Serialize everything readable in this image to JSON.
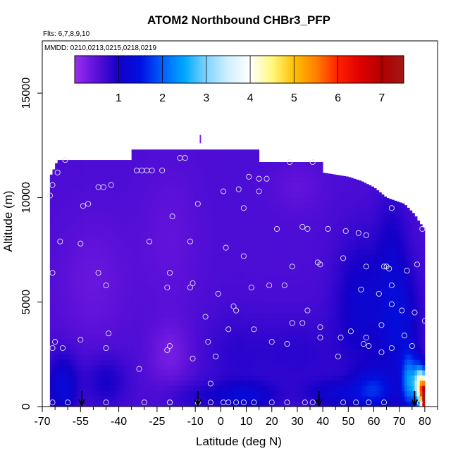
{
  "chart_data": {
    "type": "heatmap",
    "title": "ATOM2 Northbound CHBr3_PFP",
    "subtitle_flights": "Flts: 6,7,8,9,10",
    "subtitle_dates": "MMDD: 0210,0213,0215,0218,0219",
    "xlabel": "Latitude (deg N)",
    "ylabel": "Altitude (m)",
    "xlim": [
      -70,
      85
    ],
    "ylim": [
      0,
      17500
    ],
    "x_ticks": [
      -70,
      -55,
      -40,
      -25,
      -10,
      0,
      10,
      20,
      30,
      40,
      50,
      60,
      70,
      80
    ],
    "x_tick_labels": [
      "-70",
      "-55",
      "-40",
      "-25",
      "-10",
      "0",
      "10",
      "20",
      "30",
      "40",
      "50",
      "60",
      "70",
      "80"
    ],
    "x_minor_ticks": [
      -65,
      -60,
      -50,
      -45,
      -35,
      -30,
      -20,
      -15,
      -5,
      5,
      15,
      25,
      35,
      45,
      55,
      65,
      75,
      85
    ],
    "y_ticks": [
      0,
      5000,
      10000,
      15000
    ],
    "y_tick_labels": [
      "0",
      "5000",
      "10000",
      "15000"
    ],
    "colorbar": {
      "range": [
        0,
        7.5
      ],
      "ticks": [
        1,
        2,
        3,
        4,
        5,
        6,
        7
      ],
      "tick_labels": [
        "1",
        "2",
        "3",
        "4",
        "5",
        "6",
        "7"
      ],
      "stops": [
        {
          "v": 0.0,
          "color": "#9a2ff0"
        },
        {
          "v": 0.5,
          "color": "#5a10d8"
        },
        {
          "v": 1.0,
          "color": "#1400c8"
        },
        {
          "v": 1.5,
          "color": "#0010e0"
        },
        {
          "v": 2.0,
          "color": "#0060ff"
        },
        {
          "v": 2.5,
          "color": "#00a8ff"
        },
        {
          "v": 3.0,
          "color": "#80d4ff"
        },
        {
          "v": 3.5,
          "color": "#d0f0ff"
        },
        {
          "v": 4.0,
          "color": "#ffffff"
        },
        {
          "v": 4.5,
          "color": "#fff880"
        },
        {
          "v": 5.0,
          "color": "#ffc000"
        },
        {
          "v": 5.5,
          "color": "#ff8000"
        },
        {
          "v": 6.0,
          "color": "#ff2000"
        },
        {
          "v": 6.5,
          "color": "#e00000"
        },
        {
          "v": 7.0,
          "color": "#b00000"
        },
        {
          "v": 7.5,
          "color": "#a01818"
        }
      ]
    },
    "envelope": [
      [
        -67,
        11000
      ],
      [
        -66,
        11200
      ],
      [
        -64,
        11800
      ],
      [
        -45,
        11800
      ],
      [
        -35,
        11800
      ],
      [
        -35,
        12300
      ],
      [
        15,
        12300
      ],
      [
        15,
        11700
      ],
      [
        30,
        11700
      ],
      [
        40,
        11700
      ],
      [
        40,
        11200
      ],
      [
        50,
        11000
      ],
      [
        55,
        10800
      ],
      [
        60,
        10500
      ],
      [
        65,
        10000
      ],
      [
        72,
        9700
      ],
      [
        76,
        9200
      ],
      [
        78,
        8800
      ],
      [
        80,
        8500
      ],
      [
        80,
        0
      ],
      [
        -67,
        0
      ]
    ],
    "field_blobs": [
      {
        "lat": -50,
        "alt": 6000,
        "slat": 14,
        "salt": 3000,
        "amp": -0.2
      },
      {
        "lat": -20,
        "alt": 8000,
        "slat": 12,
        "salt": 3500,
        "amp": -0.15
      },
      {
        "lat": 55,
        "alt": 5000,
        "slat": 10,
        "salt": 3000,
        "amp": 0.55
      },
      {
        "lat": 70,
        "alt": 4000,
        "slat": 8,
        "salt": 3000,
        "amp": 0.7
      },
      {
        "lat": 30,
        "alt": 2500,
        "slat": 18,
        "salt": 1800,
        "amp": 0.25
      },
      {
        "lat": 5,
        "alt": 2500,
        "slat": 12,
        "salt": 2000,
        "amp": 0.2
      },
      {
        "lat": -20,
        "alt": 2500,
        "slat": 8,
        "salt": 1500,
        "amp": -0.3
      },
      {
        "lat": -10,
        "alt": 500,
        "slat": 12,
        "salt": 700,
        "amp": 0.25
      },
      {
        "lat": 10,
        "alt": 500,
        "slat": 12,
        "salt": 700,
        "amp": 0.6
      },
      {
        "lat": 45,
        "alt": 600,
        "slat": 12,
        "salt": 700,
        "amp": 0.5
      },
      {
        "lat": 60,
        "alt": 800,
        "slat": 8,
        "salt": 1000,
        "amp": 0.9
      },
      {
        "lat": 74,
        "alt": 1200,
        "slat": 3,
        "salt": 1300,
        "amp": 1.6
      },
      {
        "lat": 78,
        "alt": 1000,
        "slat": 2,
        "salt": 900,
        "amp": 3.2
      },
      {
        "lat": 79.5,
        "alt": 600,
        "slat": 1.2,
        "salt": 800,
        "amp": 4.5
      },
      {
        "lat": 80,
        "alt": 200,
        "slat": 1.0,
        "salt": 500,
        "amp": 2.5
      },
      {
        "lat": -62,
        "alt": 1000,
        "slat": 6,
        "salt": 1500,
        "amp": 0.7
      },
      {
        "lat": -45,
        "alt": 1200,
        "slat": 8,
        "salt": 1200,
        "amp": 0.4
      },
      {
        "lat": 67,
        "alt": 8000,
        "slat": 6,
        "salt": 2500,
        "amp": 0.3
      },
      {
        "lat": 30,
        "alt": 10500,
        "slat": 10,
        "salt": 1200,
        "amp": -0.15
      }
    ],
    "field_base": 0.6,
    "samples": [
      [
        -67,
        10100
      ],
      [
        -66,
        10600
      ],
      [
        -64,
        11200
      ],
      [
        -61,
        11800
      ],
      [
        -63,
        7900
      ],
      [
        -66,
        6400
      ],
      [
        -65,
        3100
      ],
      [
        -62,
        2800
      ],
      [
        -66,
        2800
      ],
      [
        -55,
        3200
      ],
      [
        -55,
        7800
      ],
      [
        -54,
        9600
      ],
      [
        -52,
        9700
      ],
      [
        -48,
        10500
      ],
      [
        -46,
        10500
      ],
      [
        -43,
        10600
      ],
      [
        -48,
        6400
      ],
      [
        -45,
        5800
      ],
      [
        -44,
        3500
      ],
      [
        -45,
        2800
      ],
      [
        -66,
        200
      ],
      [
        -60,
        200
      ],
      [
        -45,
        200
      ],
      [
        -33,
        11300
      ],
      [
        -31,
        11300
      ],
      [
        -29,
        11300
      ],
      [
        -27,
        11300
      ],
      [
        -23,
        11300
      ],
      [
        -16,
        11900
      ],
      [
        -14,
        11900
      ],
      [
        -19,
        9100
      ],
      [
        -28,
        7900
      ],
      [
        -32,
        1800
      ],
      [
        -20,
        6400
      ],
      [
        -20,
        2900
      ],
      [
        -21,
        2700
      ],
      [
        -21,
        5700
      ],
      [
        -12,
        5700
      ],
      [
        -11,
        5900
      ],
      [
        -12,
        7900
      ],
      [
        -11,
        2300
      ],
      [
        -9,
        9700
      ],
      [
        -6,
        4300
      ],
      [
        -5,
        3100
      ],
      [
        -4,
        1100
      ],
      [
        -2,
        2400
      ],
      [
        -1,
        5400
      ],
      [
        1,
        10300
      ],
      [
        2,
        7600
      ],
      [
        3,
        3700
      ],
      [
        5,
        4800
      ],
      [
        6,
        4600
      ],
      [
        7,
        10400
      ],
      [
        9,
        9500
      ],
      [
        9,
        7200
      ],
      [
        11,
        11000
      ],
      [
        12,
        5700
      ],
      [
        13,
        3700
      ],
      [
        15,
        10300
      ],
      [
        15,
        10900
      ],
      [
        18,
        10900
      ],
      [
        19,
        5800
      ],
      [
        20,
        3100
      ],
      [
        22,
        8500
      ],
      [
        25,
        5800
      ],
      [
        26,
        3000
      ],
      [
        27,
        11700
      ],
      [
        28,
        6700
      ],
      [
        28,
        4000
      ],
      [
        32,
        4000
      ],
      [
        32,
        8600
      ],
      [
        34,
        8500
      ],
      [
        34,
        4600
      ],
      [
        36,
        11700
      ],
      [
        38,
        6900
      ],
      [
        39,
        3800
      ],
      [
        39,
        3300
      ],
      [
        39,
        6800
      ],
      [
        42,
        8500
      ],
      [
        46,
        2400
      ],
      [
        47,
        3300
      ],
      [
        48,
        7100
      ],
      [
        49,
        8400
      ],
      [
        51,
        3600
      ],
      [
        54,
        8300
      ],
      [
        55,
        5600
      ],
      [
        56,
        3000
      ],
      [
        57,
        3300
      ],
      [
        57,
        6700
      ],
      [
        57,
        8200
      ],
      [
        58,
        2900
      ],
      [
        62,
        5400
      ],
      [
        63,
        2600
      ],
      [
        63,
        3900
      ],
      [
        64,
        6700
      ],
      [
        65,
        6700
      ],
      [
        66,
        6600
      ],
      [
        67,
        2800
      ],
      [
        67,
        4900
      ],
      [
        67,
        5800
      ],
      [
        67,
        9500
      ],
      [
        71,
        4600
      ],
      [
        72,
        3400
      ],
      [
        73,
        6500
      ],
      [
        75,
        2900
      ],
      [
        76,
        4500
      ],
      [
        77,
        6800
      ],
      [
        79,
        8500
      ],
      [
        80,
        4100
      ],
      [
        -30,
        200
      ],
      [
        -20,
        200
      ],
      [
        -9,
        200
      ],
      [
        -4,
        200
      ],
      [
        1,
        200
      ],
      [
        3,
        200
      ],
      [
        6,
        200
      ],
      [
        9,
        200
      ],
      [
        13,
        200
      ],
      [
        20,
        200
      ],
      [
        26,
        200
      ],
      [
        33,
        200
      ],
      [
        36,
        200
      ],
      [
        48,
        200
      ],
      [
        53,
        200
      ],
      [
        58,
        200
      ],
      [
        64,
        200
      ],
      [
        78,
        200
      ],
      [
        -20,
        200
      ]
    ],
    "arrows_lat": [
      -54.5,
      -9,
      38.5,
      76
    ],
    "spike": {
      "lat": -8,
      "alt_from": 12600,
      "alt_to": 13000,
      "color": "#8a1ff0"
    }
  }
}
